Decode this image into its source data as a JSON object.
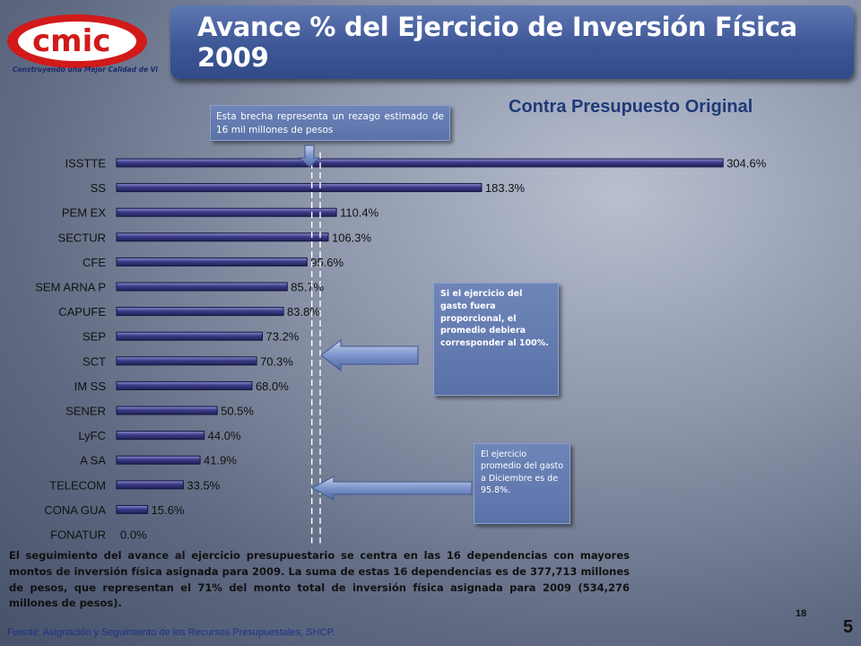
{
  "logo": {
    "text": "cmic",
    "tagline": "Construyendo una Mejor Calidad de Vida"
  },
  "header": {
    "title": "Avance % del Ejercicio de Inversión Física 2009"
  },
  "chart_data": {
    "type": "bar",
    "orientation": "horizontal",
    "title": "Contra Presupuesto Original",
    "categories": [
      "ISSTTE",
      "SS",
      "PEM EX",
      "SECTUR",
      "CFE",
      "SEM ARNA P",
      "CAPUFE",
      "SEP",
      "SCT",
      "IM SS",
      "SENER",
      "LyFC",
      "A SA",
      "TELECOM",
      "CONA GUA",
      "FONATUR"
    ],
    "values": [
      304.6,
      183.3,
      110.4,
      106.3,
      95.6,
      85.7,
      83.8,
      73.2,
      70.3,
      68.0,
      50.5,
      44.0,
      41.9,
      33.5,
      15.6,
      0.0
    ],
    "data_labels": [
      "304.6%",
      "183.3%",
      "110.4%",
      "106.3%",
      "95.6%",
      "85.7%",
      "83.8%",
      "73.2%",
      "70.3%",
      "68.0%",
      "50.5%",
      "44.0%",
      "41.9%",
      "33.5%",
      "15.6%",
      "0.0%"
    ],
    "reference_lines": [
      95.8,
      100
    ],
    "bar_color": "#3c3c86",
    "grid": false,
    "legend": "none"
  },
  "callouts": {
    "top": "Esta brecha representa un rezago estimado de 16 mil millones de pesos",
    "mid": "Si el ejercicio del gasto fuera proporcional, el promedio debiera corresponder al 100%.",
    "low": "El ejercicio promedio del gasto a Diciembre es de 95.8%."
  },
  "body_text": "El seguimiento del avance al ejercicio presupuestario se centra en las 16 dependencias con mayores montos de inversión física asignada para 2009. La suma de estas 16 dependencias es de 377,713 millones de pesos, que representan el 71% del monto total de inversión física asignada para 2009 (534,276 millones de pesos).",
  "page_number": "18",
  "slide_number": "5",
  "source": "Fuente: Asignación y Seguimiento de los Recursos Presupuestales, SHCP."
}
